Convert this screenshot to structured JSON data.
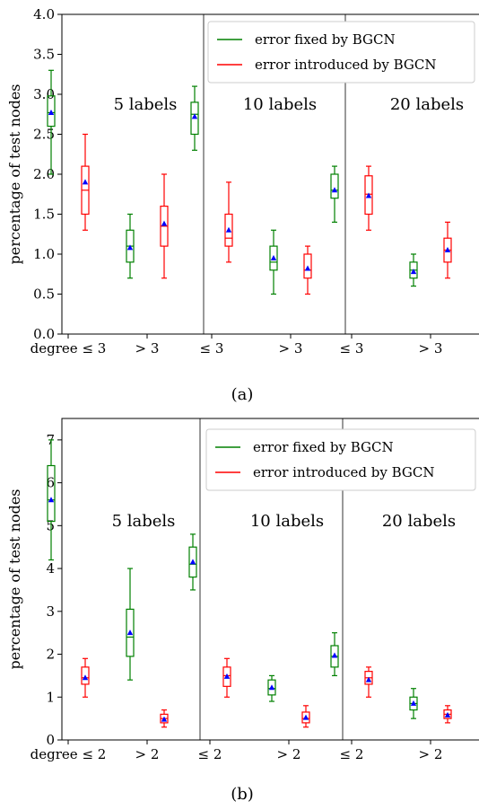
{
  "figure": {
    "caption_a": "(a)",
    "caption_b": "(b)"
  },
  "chart_data": [
    {
      "type": "boxplot",
      "ylabel": "percentage of test nodes",
      "ylim": [
        0,
        4.0
      ],
      "yticks": [
        "0.0",
        "0.5",
        "1.0",
        "1.5",
        "2.0",
        "2.5",
        "3.0",
        "3.5",
        "4.0"
      ],
      "categories": [
        "degree ≤ 3",
        "> 3",
        "≤ 3",
        "> 3",
        "≤ 3",
        "> 3"
      ],
      "groups": [
        "5 labels",
        "10 labels",
        "20 labels"
      ],
      "legend": {
        "position": "top-right",
        "entries": [
          "error fixed by BGCN",
          "error introduced by BGCN"
        ]
      },
      "series": [
        {
          "name": "error fixed by BGCN",
          "color": "#008000",
          "boxes": [
            {
              "min": 2.0,
              "q1": 2.6,
              "median": 2.77,
              "q3": 2.98,
              "max": 3.3,
              "mean": 2.77
            },
            {
              "min": 0.7,
              "q1": 0.9,
              "median": 1.1,
              "q3": 1.3,
              "max": 1.5,
              "mean": 1.08
            },
            {
              "min": 2.3,
              "q1": 2.5,
              "median": 2.75,
              "q3": 2.9,
              "max": 3.1,
              "mean": 2.72
            },
            {
              "min": 0.5,
              "q1": 0.8,
              "median": 0.9,
              "q3": 1.1,
              "max": 1.3,
              "mean": 0.95
            },
            {
              "min": 1.4,
              "q1": 1.7,
              "median": 1.8,
              "q3": 2.0,
              "max": 2.1,
              "mean": 1.8
            },
            {
              "min": 0.6,
              "q1": 0.7,
              "median": 0.8,
              "q3": 0.9,
              "max": 1.0,
              "mean": 0.78
            }
          ]
        },
        {
          "name": "error introduced by BGCN",
          "color": "#ff0000",
          "boxes": [
            {
              "min": 1.3,
              "q1": 1.5,
              "median": 1.8,
              "q3": 2.1,
              "max": 2.5,
              "mean": 1.9
            },
            {
              "min": 0.7,
              "q1": 1.1,
              "median": 1.35,
              "q3": 1.6,
              "max": 2.0,
              "mean": 1.38
            },
            {
              "min": 0.9,
              "q1": 1.1,
              "median": 1.2,
              "q3": 1.5,
              "max": 1.9,
              "mean": 1.3
            },
            {
              "min": 0.5,
              "q1": 0.7,
              "median": 0.8,
              "q3": 1.0,
              "max": 1.1,
              "mean": 0.82
            },
            {
              "min": 1.3,
              "q1": 1.5,
              "median": 1.75,
              "q3": 1.98,
              "max": 2.1,
              "mean": 1.73
            },
            {
              "min": 0.7,
              "q1": 0.9,
              "median": 1.05,
              "q3": 1.2,
              "max": 1.4,
              "mean": 1.05
            }
          ]
        }
      ]
    },
    {
      "type": "boxplot",
      "ylabel": "percentage of test nodes",
      "ylim": [
        0,
        7.5
      ],
      "yticks": [
        "0",
        "1",
        "2",
        "3",
        "4",
        "5",
        "6",
        "7"
      ],
      "categories": [
        "degree ≤ 2",
        "> 2",
        "≤ 2",
        "> 2",
        "≤ 2",
        "> 2"
      ],
      "groups": [
        "5 labels",
        "10 labels",
        "20 labels"
      ],
      "legend": {
        "position": "top-right",
        "entries": [
          "error fixed by BGCN",
          "error introduced by BGCN"
        ]
      },
      "series": [
        {
          "name": "error fixed by BGCN",
          "color": "#008000",
          "boxes": [
            {
              "min": 4.2,
              "q1": 5.1,
              "median": 5.6,
              "q3": 6.4,
              "max": 7.0,
              "mean": 5.6
            },
            {
              "min": 1.4,
              "q1": 1.95,
              "median": 2.4,
              "q3": 3.05,
              "max": 4.0,
              "mean": 2.5
            },
            {
              "min": 3.5,
              "q1": 3.8,
              "median": 4.1,
              "q3": 4.5,
              "max": 4.8,
              "mean": 4.15
            },
            {
              "min": 0.9,
              "q1": 1.05,
              "median": 1.2,
              "q3": 1.4,
              "max": 1.5,
              "mean": 1.22
            },
            {
              "min": 1.5,
              "q1": 1.7,
              "median": 1.95,
              "q3": 2.2,
              "max": 2.5,
              "mean": 1.97
            },
            {
              "min": 0.5,
              "q1": 0.7,
              "median": 0.85,
              "q3": 1.0,
              "max": 1.2,
              "mean": 0.85
            }
          ]
        },
        {
          "name": "error introduced by BGCN",
          "color": "#ff0000",
          "boxes": [
            {
              "min": 1.0,
              "q1": 1.3,
              "median": 1.45,
              "q3": 1.7,
              "max": 1.9,
              "mean": 1.45
            },
            {
              "min": 0.3,
              "q1": 0.4,
              "median": 0.5,
              "q3": 0.6,
              "max": 0.7,
              "mean": 0.48
            },
            {
              "min": 1.0,
              "q1": 1.25,
              "median": 1.5,
              "q3": 1.7,
              "max": 1.9,
              "mean": 1.48
            },
            {
              "min": 0.3,
              "q1": 0.4,
              "median": 0.5,
              "q3": 0.65,
              "max": 0.8,
              "mean": 0.52
            },
            {
              "min": 1.0,
              "q1": 1.3,
              "median": 1.45,
              "q3": 1.6,
              "max": 1.7,
              "mean": 1.4
            },
            {
              "min": 0.4,
              "q1": 0.5,
              "median": 0.6,
              "q3": 0.7,
              "max": 0.8,
              "mean": 0.58
            }
          ]
        }
      ]
    }
  ]
}
